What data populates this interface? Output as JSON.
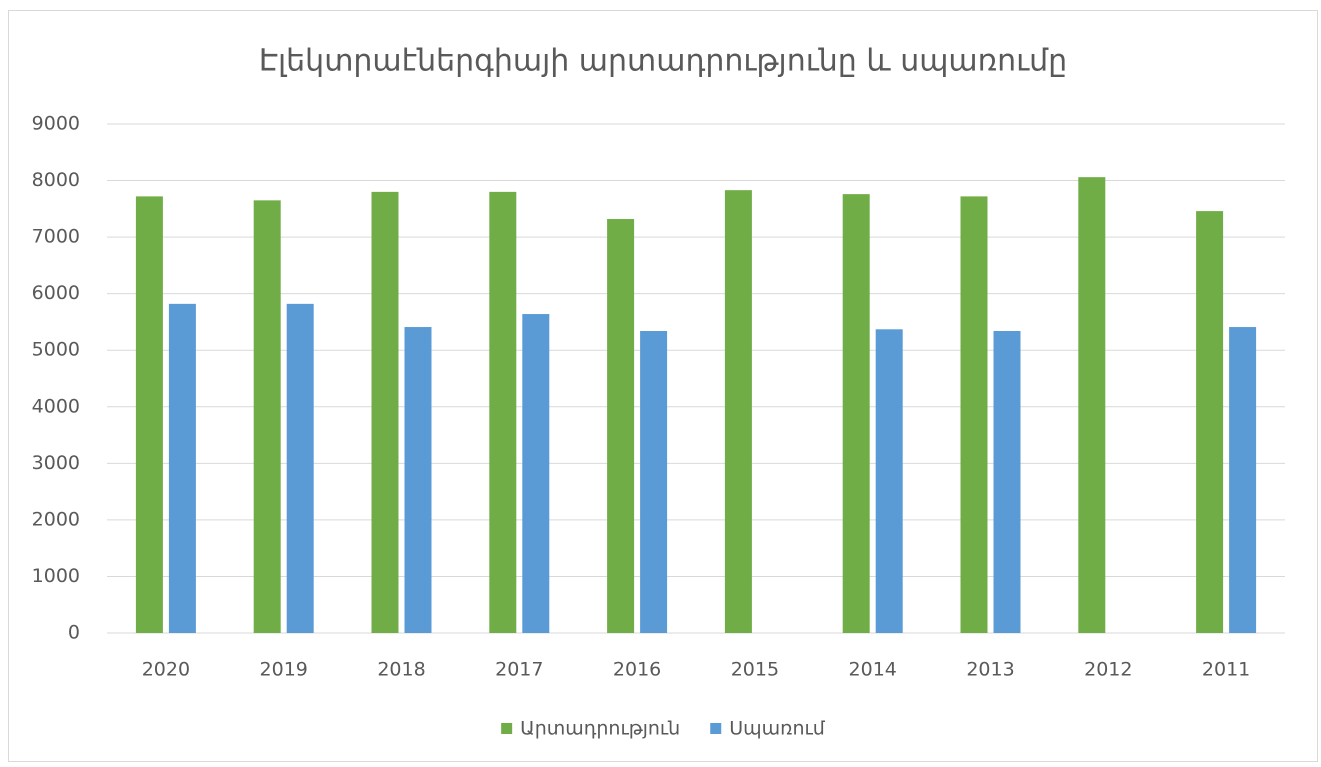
{
  "chart_data": {
    "type": "bar",
    "title": "Էլեկտրաէներգիայի արտադրությունը և սպառումը",
    "categories": [
      "2020",
      "2019",
      "2018",
      "2017",
      "2016",
      "2015",
      "2014",
      "2013",
      "2012",
      "2011"
    ],
    "series": [
      {
        "name": "Արտադրություն",
        "color": "#70ad47",
        "values": [
          7720,
          7650,
          7800,
          7800,
          7320,
          7830,
          7760,
          7720,
          8060,
          7460
        ]
      },
      {
        "name": "Սպառում",
        "color": "#5b9bd5",
        "values": [
          5820,
          5820,
          5410,
          5640,
          5340,
          null,
          5370,
          5340,
          null,
          5410
        ]
      }
    ],
    "ylim": [
      0,
      9000
    ],
    "yticks": [
      0,
      1000,
      2000,
      3000,
      4000,
      5000,
      6000,
      7000,
      8000,
      9000
    ],
    "grid": true,
    "legend": "bottom"
  }
}
